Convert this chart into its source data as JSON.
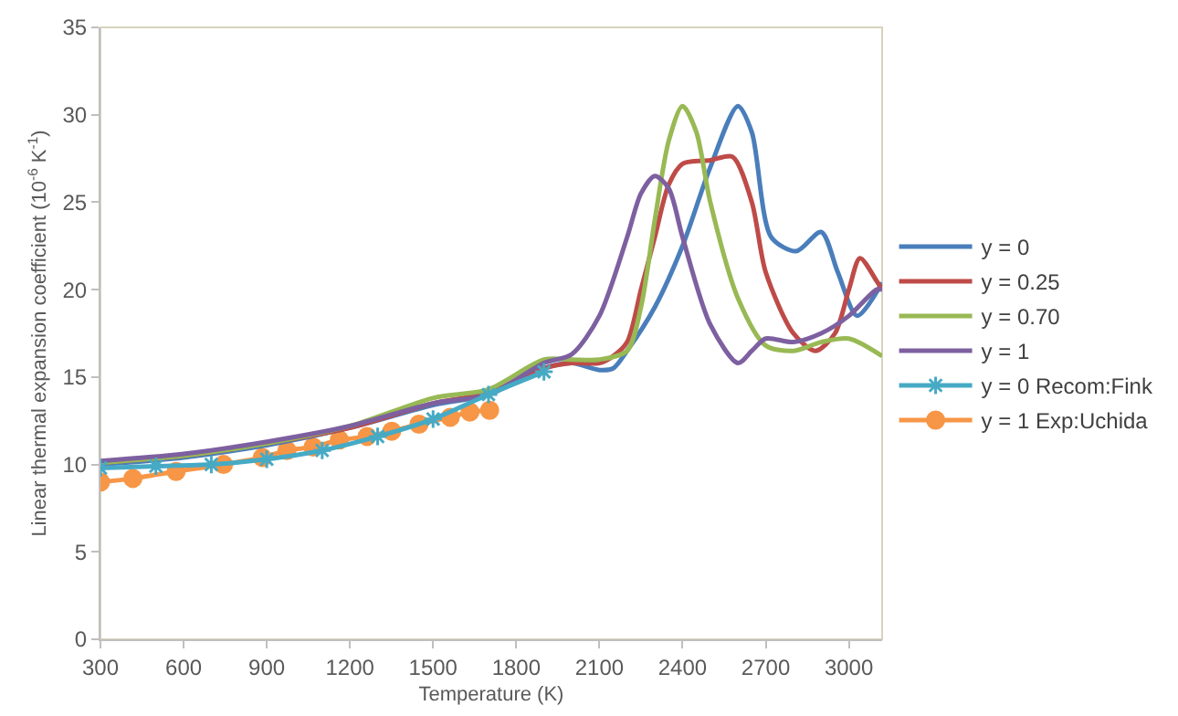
{
  "chart_data": {
    "type": "line",
    "xlabel": "Temperature (K)",
    "ylabel": "Linear thermal expansion coefficient (10$^{-6}$ K$^{-1}$)",
    "xlim": [
      300,
      3120
    ],
    "xticks": [
      300,
      600,
      900,
      1200,
      1500,
      1800,
      2100,
      2400,
      2700,
      3000
    ],
    "ylim": [
      0,
      35
    ],
    "yticks": [
      0,
      5,
      10,
      15,
      20,
      25,
      30,
      35
    ],
    "grid": false,
    "legend": "right",
    "series": [
      {
        "name": "y = 0",
        "color": "#4a7ebb",
        "marker": "none",
        "x": [
          300,
          600,
          900,
          1200,
          1500,
          1700,
          1900,
          2000,
          2100,
          2150,
          2200,
          2300,
          2400,
          2500,
          2600,
          2650,
          2720,
          2810,
          2900,
          2960,
          3030,
          3120
        ],
        "values": [
          10.0,
          10.4,
          11.1,
          12.1,
          13.4,
          14.0,
          15.5,
          15.8,
          15.4,
          15.5,
          16.5,
          19.0,
          22.5,
          27.0,
          30.5,
          29.0,
          23.0,
          22.2,
          23.3,
          21.0,
          18.5,
          20.4
        ]
      },
      {
        "name": "y = 0.25",
        "color": "#be4b48",
        "marker": "none",
        "x": [
          300,
          600,
          900,
          1200,
          1500,
          1700,
          1900,
          2000,
          2100,
          2150,
          2200,
          2250,
          2300,
          2350,
          2400,
          2500,
          2580,
          2650,
          2700,
          2800,
          2880,
          2950,
          3000,
          3040,
          3100,
          3120
        ],
        "values": [
          10.1,
          10.5,
          11.2,
          12.1,
          13.5,
          14.1,
          15.5,
          15.8,
          15.8,
          16.2,
          17.0,
          20.0,
          23.0,
          26.0,
          27.2,
          27.4,
          27.6,
          25.0,
          21.0,
          17.5,
          16.5,
          17.5,
          20.0,
          21.8,
          20.5,
          20.0
        ]
      },
      {
        "name": "y = 0.70",
        "color": "#98b954",
        "marker": "none",
        "x": [
          300,
          600,
          900,
          1200,
          1500,
          1700,
          1900,
          2000,
          2100,
          2200,
          2250,
          2300,
          2350,
          2400,
          2450,
          2500,
          2600,
          2700,
          2800,
          2900,
          3000,
          3120
        ],
        "values": [
          10.1,
          10.5,
          11.2,
          12.2,
          13.8,
          14.3,
          16.0,
          16.0,
          16.0,
          16.5,
          19.0,
          24.0,
          28.5,
          30.5,
          29.0,
          25.0,
          19.5,
          16.8,
          16.5,
          17.0,
          17.2,
          16.2
        ]
      },
      {
        "name": "y = 1",
        "color": "#7d60a0",
        "marker": "none",
        "x": [
          300,
          600,
          900,
          1200,
          1500,
          1700,
          1900,
          2000,
          2100,
          2200,
          2250,
          2300,
          2350,
          2400,
          2500,
          2600,
          2650,
          2700,
          2800,
          2900,
          3000,
          3100,
          3120
        ],
        "values": [
          10.2,
          10.6,
          11.3,
          12.2,
          13.5,
          14.0,
          15.8,
          16.3,
          18.5,
          23.0,
          25.5,
          26.5,
          25.8,
          23.0,
          18.0,
          15.8,
          16.5,
          17.2,
          17.0,
          17.5,
          18.5,
          20.0,
          20.0
        ]
      },
      {
        "name": "y = 0 Recom:Fink",
        "color": "#46aac5",
        "marker": "cross",
        "x": [
          300,
          500,
          700,
          900,
          1100,
          1300,
          1500,
          1700,
          1900
        ],
        "values": [
          9.8,
          9.9,
          10.0,
          10.3,
          10.8,
          11.6,
          12.6,
          14.0,
          15.3
        ]
      },
      {
        "name": "y = 1 Exp:Uchida",
        "color": "#f79646",
        "marker": "circle",
        "x": [
          300,
          417,
          573,
          744,
          884,
          973,
          1067,
          1162,
          1262,
          1351,
          1449,
          1562,
          1633,
          1704
        ],
        "values": [
          9.0,
          9.2,
          9.6,
          10.0,
          10.4,
          10.8,
          11.0,
          11.4,
          11.6,
          11.9,
          12.3,
          12.7,
          13.0,
          13.1
        ]
      }
    ]
  }
}
